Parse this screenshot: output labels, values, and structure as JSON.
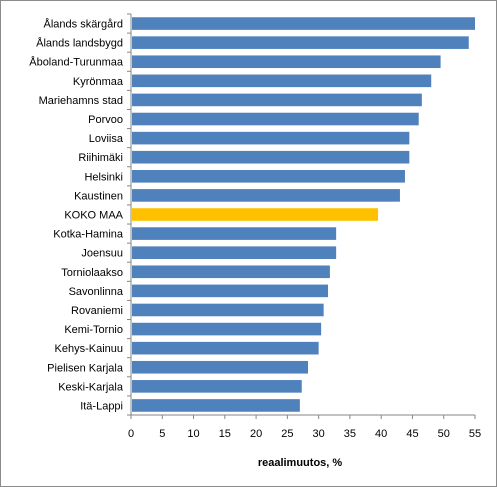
{
  "chart_data": {
    "type": "bar",
    "orientation": "horizontal",
    "xlabel": "reaalimuutos, %",
    "xlim": [
      0,
      55
    ],
    "xticks": [
      0,
      5,
      10,
      15,
      20,
      25,
      30,
      35,
      40,
      45,
      50,
      55
    ],
    "grid": false,
    "categories": [
      "Ålands skärgård",
      "Ålands landsbygd",
      "Åboland-Turunmaa",
      "Kyrönmaa",
      "Mariehamns stad",
      "Porvoo",
      "Loviisa",
      "Riihimäki",
      "Helsinki",
      "Kaustinen",
      "KOKO MAA",
      "Kotka-Hamina",
      "Joensuu",
      "Torniolaakso",
      "Savonlinna",
      "Rovaniemi",
      "Kemi-Tornio",
      "Kehys-Kainuu",
      "Pielisen Karjala",
      "Keski-Karjala",
      "Itä-Lappi"
    ],
    "values": [
      55.0,
      54.0,
      49.5,
      48.0,
      46.5,
      46.0,
      44.5,
      44.5,
      43.8,
      43.0,
      39.5,
      32.8,
      32.8,
      31.8,
      31.5,
      30.8,
      30.4,
      30.0,
      28.3,
      27.3,
      27.0
    ],
    "highlight_category": "KOKO MAA",
    "colors": {
      "bar": "#4f81bd",
      "highlight": "#ffc000",
      "axis": "#868686"
    }
  }
}
